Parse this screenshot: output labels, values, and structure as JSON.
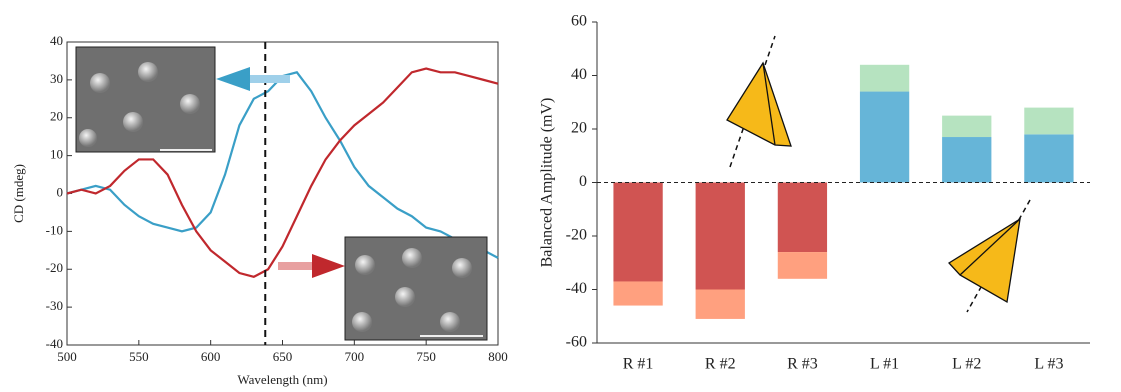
{
  "chart_data": [
    {
      "type": "line",
      "xlabel": "Wavelength (nm)",
      "ylabel": "CD (mdeg)",
      "x": [
        500,
        510,
        520,
        530,
        540,
        550,
        560,
        570,
        580,
        590,
        600,
        610,
        620,
        630,
        640,
        650,
        660,
        670,
        680,
        690,
        700,
        710,
        720,
        730,
        740,
        750,
        760,
        770,
        780,
        790,
        800
      ],
      "series": [
        {
          "color": "#3a9fc7",
          "values": [
            0,
            1,
            2,
            1,
            -3,
            -6,
            -8,
            -9,
            -10,
            -9,
            -5,
            5,
            18,
            25,
            27,
            31,
            32,
            27,
            20,
            14,
            7,
            2,
            -1,
            -4,
            -6,
            -9,
            -10,
            -12,
            -14,
            -15,
            -17
          ]
        },
        {
          "color": "#c0282d",
          "values": [
            0,
            1,
            0,
            2,
            6,
            9,
            9,
            5,
            -3,
            -10,
            -15,
            -18,
            -21,
            -22,
            -20,
            -14,
            -6,
            2,
            9,
            14,
            18,
            21,
            24,
            28,
            32,
            33,
            32,
            32,
            31,
            30,
            29
          ]
        }
      ],
      "xlim": [
        500,
        800
      ],
      "xticks": [
        500,
        550,
        600,
        650,
        700,
        750,
        800
      ],
      "ylim": [
        -40,
        40
      ],
      "yticks": [
        -40,
        -30,
        -20,
        -10,
        0,
        10,
        20,
        30,
        40
      ],
      "vline": 638
    },
    {
      "type": "bar",
      "ylabel": "Balanced Amplitude (mV)",
      "categories": [
        "R #1",
        "R #2",
        "R #3",
        "L #1",
        "L #2",
        "L #3"
      ],
      "series": [
        {
          "colors": [
            "#d05452",
            "#d05452",
            "#d05452",
            "#66b5d8",
            "#66b5d8",
            "#66b5d8"
          ],
          "values": [
            -37,
            -40,
            -26,
            34,
            17,
            18
          ]
        },
        {
          "colors": [
            "#ffa07f",
            "#ffa07f",
            "#ffa07f",
            "#b6e3c0",
            "#b6e3c0",
            "#b6e3c0"
          ],
          "values": [
            -9,
            -11,
            -10,
            10,
            8,
            10
          ]
        }
      ],
      "ylim": [
        -60,
        60
      ],
      "yticks": [
        -60,
        -40,
        -20,
        0,
        20,
        40,
        60
      ]
    }
  ]
}
